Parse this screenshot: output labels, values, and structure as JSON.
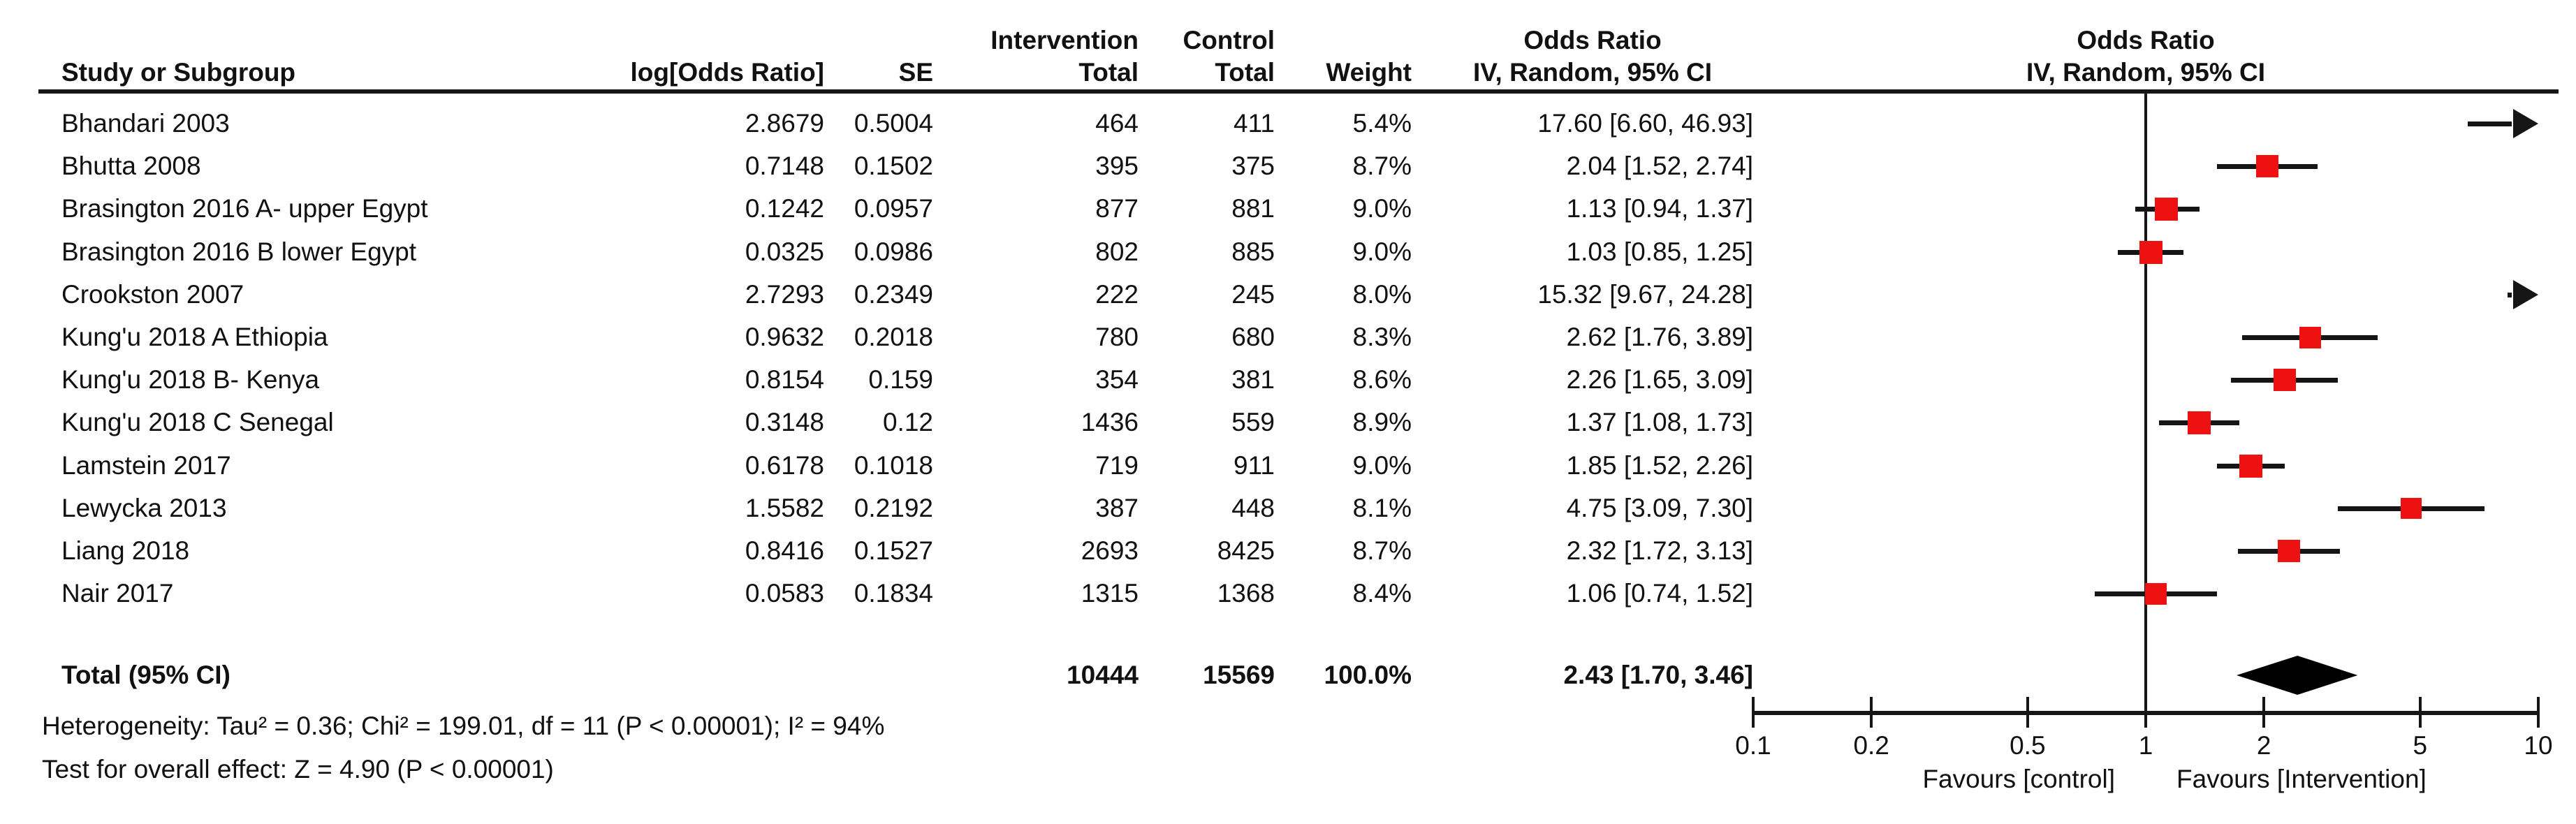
{
  "chart_data": {
    "type": "forest",
    "effect_measure": "Odds Ratio",
    "model": "IV, Random, 95% CI",
    "columns": {
      "study": "Study or Subgroup",
      "log_or": "log[Odds Ratio]",
      "se": "SE",
      "group1": "Intervention",
      "group2": "Control",
      "total1": "Total",
      "total2": "Total",
      "weight": "Weight",
      "or_header": "Odds Ratio",
      "iv_label": "IV, Random, 95% CI"
    },
    "studies": [
      {
        "name": "Bhandari 2003",
        "log_or": "2.8679",
        "se": "0.5004",
        "n_int": "464",
        "n_ctrl": "411",
        "weight": "5.4%",
        "weight_pct": 5.4,
        "or_ci": "17.60 [6.60, 46.93]",
        "or": 17.6,
        "lo": 6.6,
        "hi": 46.93
      },
      {
        "name": "Bhutta 2008",
        "log_or": "0.7148",
        "se": "0.1502",
        "n_int": "395",
        "n_ctrl": "375",
        "weight": "8.7%",
        "weight_pct": 8.7,
        "or_ci": "2.04 [1.52, 2.74]",
        "or": 2.04,
        "lo": 1.52,
        "hi": 2.74
      },
      {
        "name": "Brasington 2016 A- upper Egypt",
        "log_or": "0.1242",
        "se": "0.0957",
        "n_int": "877",
        "n_ctrl": "881",
        "weight": "9.0%",
        "weight_pct": 9.0,
        "or_ci": "1.13 [0.94, 1.37]",
        "or": 1.13,
        "lo": 0.94,
        "hi": 1.37
      },
      {
        "name": "Brasington 2016 B lower Egypt",
        "log_or": "0.0325",
        "se": "0.0986",
        "n_int": "802",
        "n_ctrl": "885",
        "weight": "9.0%",
        "weight_pct": 9.0,
        "or_ci": "1.03 [0.85, 1.25]",
        "or": 1.03,
        "lo": 0.85,
        "hi": 1.25
      },
      {
        "name": "Crookston 2007",
        "log_or": "2.7293",
        "se": "0.2349",
        "n_int": "222",
        "n_ctrl": "245",
        "weight": "8.0%",
        "weight_pct": 8.0,
        "or_ci": "15.32 [9.67, 24.28]",
        "or": 15.32,
        "lo": 9.67,
        "hi": 24.28
      },
      {
        "name": "Kung'u 2018 A Ethiopia",
        "log_or": "0.9632",
        "se": "0.2018",
        "n_int": "780",
        "n_ctrl": "680",
        "weight": "8.3%",
        "weight_pct": 8.3,
        "or_ci": "2.62 [1.76, 3.89]",
        "or": 2.62,
        "lo": 1.76,
        "hi": 3.89
      },
      {
        "name": "Kung'u 2018 B- Kenya",
        "log_or": "0.8154",
        "se": "0.159",
        "n_int": "354",
        "n_ctrl": "381",
        "weight": "8.6%",
        "weight_pct": 8.6,
        "or_ci": "2.26 [1.65, 3.09]",
        "or": 2.26,
        "lo": 1.65,
        "hi": 3.09
      },
      {
        "name": "Kung'u 2018 C Senegal",
        "log_or": "0.3148",
        "se": "0.12",
        "n_int": "1436",
        "n_ctrl": "559",
        "weight": "8.9%",
        "weight_pct": 8.9,
        "or_ci": "1.37 [1.08, 1.73]",
        "or": 1.37,
        "lo": 1.08,
        "hi": 1.73
      },
      {
        "name": "Lamstein 2017",
        "log_or": "0.6178",
        "se": "0.1018",
        "n_int": "719",
        "n_ctrl": "911",
        "weight": "9.0%",
        "weight_pct": 9.0,
        "or_ci": "1.85 [1.52, 2.26]",
        "or": 1.85,
        "lo": 1.52,
        "hi": 2.26
      },
      {
        "name": "Lewycka 2013",
        "log_or": "1.5582",
        "se": "0.2192",
        "n_int": "387",
        "n_ctrl": "448",
        "weight": "8.1%",
        "weight_pct": 8.1,
        "or_ci": "4.75 [3.09, 7.30]",
        "or": 4.75,
        "lo": 3.09,
        "hi": 7.3
      },
      {
        "name": "Liang 2018",
        "log_or": "0.8416",
        "se": "0.1527",
        "n_int": "2693",
        "n_ctrl": "8425",
        "weight": "8.7%",
        "weight_pct": 8.7,
        "or_ci": "2.32 [1.72, 3.13]",
        "or": 2.32,
        "lo": 1.72,
        "hi": 3.13
      },
      {
        "name": "Nair 2017",
        "log_or": "0.0583",
        "se": "0.1834",
        "n_int": "1315",
        "n_ctrl": "1368",
        "weight": "8.4%",
        "weight_pct": 8.4,
        "or_ci": "1.06 [0.74, 1.52]",
        "or": 1.06,
        "lo": 0.74,
        "hi": 1.52
      }
    ],
    "total": {
      "label": "Total (95% CI)",
      "n_int": "10444",
      "n_ctrl": "15569",
      "weight": "100.0%",
      "or_ci": "2.43 [1.70, 3.46]",
      "or": 2.43,
      "lo": 1.7,
      "hi": 3.46
    },
    "footnotes": {
      "heterogeneity": "Heterogeneity: Tau² = 0.36; Chi² = 199.01, df = 11 (P < 0.00001); I² = 94%",
      "overall_effect": "Test for overall effect: Z = 4.90 (P < 0.00001)"
    },
    "axis": {
      "scale": "log",
      "min": 0.1,
      "max": 10,
      "ticks": [
        "0.1",
        "0.2",
        "0.5",
        "1",
        "2",
        "5",
        "10"
      ],
      "favours_left": "Favours [control]",
      "favours_right": "Favours [Intervention]"
    },
    "colors": {
      "marker_square": "#ee1111",
      "line": "#151515",
      "diamond": "#000000"
    }
  }
}
